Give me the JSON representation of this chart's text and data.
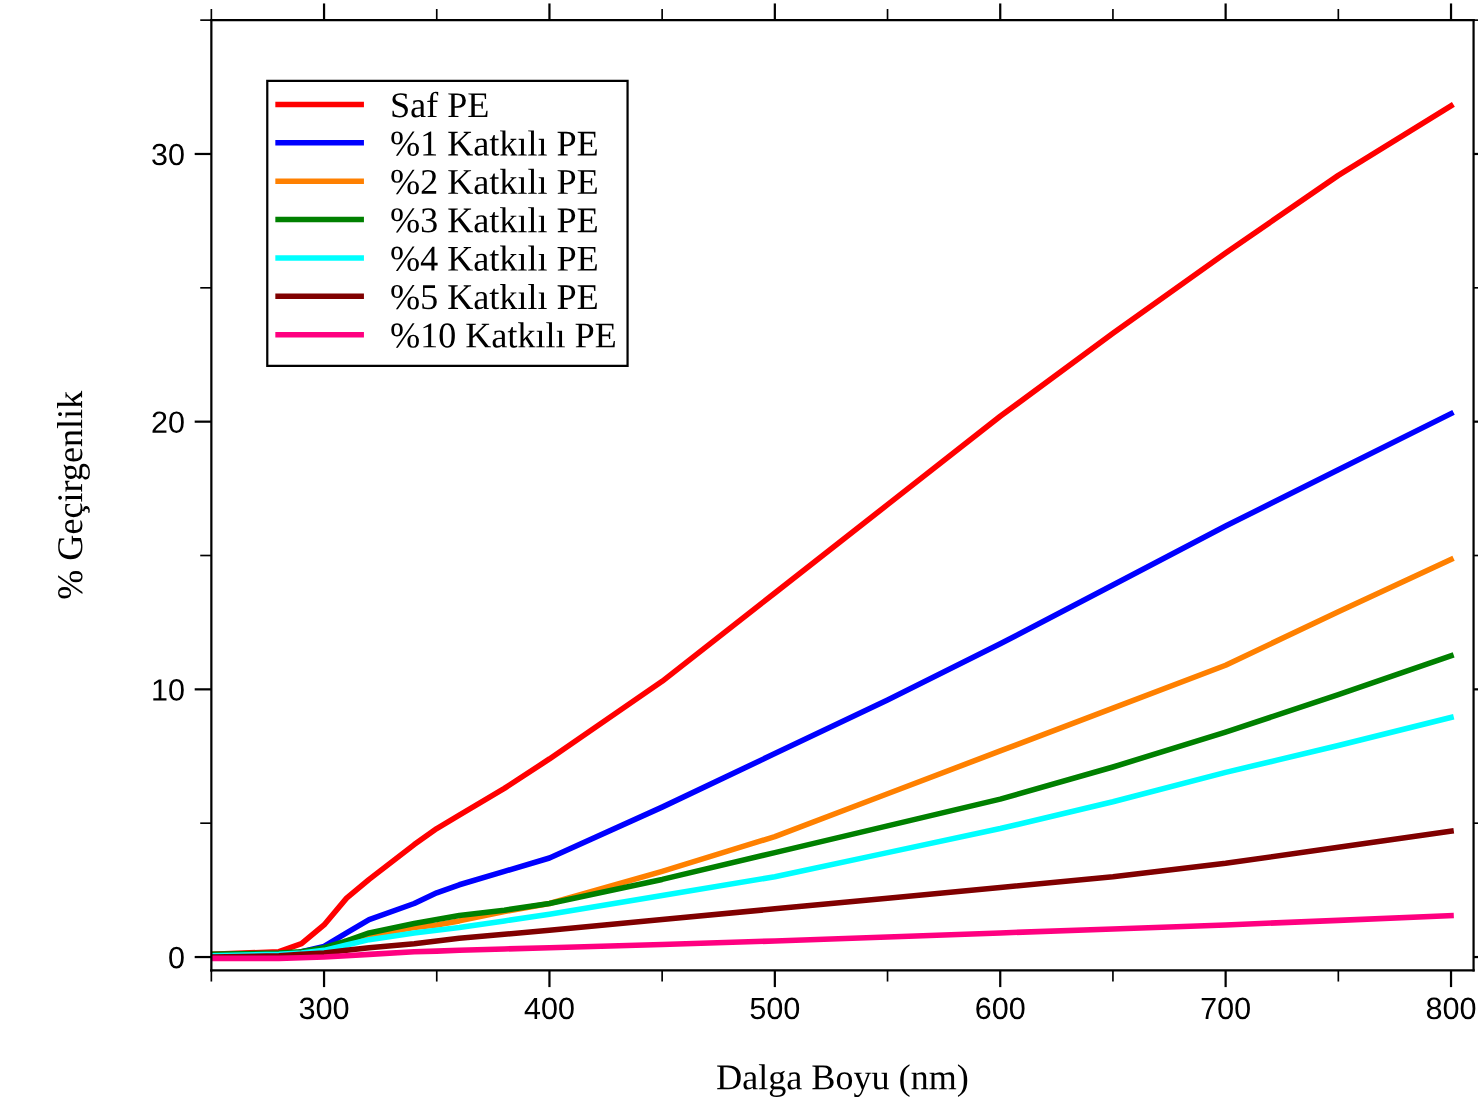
{
  "chart_data": {
    "type": "line",
    "xlabel": "Dalga Boyu (nm)",
    "ylabel": "% Geçirgenlik",
    "x": [
      250,
      280,
      290,
      300,
      310,
      320,
      340,
      350,
      360,
      380,
      400,
      450,
      500,
      550,
      600,
      650,
      700,
      750,
      800
    ],
    "series": [
      {
        "name": "Saf PE",
        "color": "#ff0000",
        "values": [
          0.1,
          0.2,
          0.5,
          1.2,
          2.2,
          2.9,
          4.2,
          4.8,
          5.3,
          6.3,
          7.4,
          10.3,
          13.6,
          16.9,
          20.2,
          23.3,
          26.3,
          29.2,
          31.8
        ]
      },
      {
        "name": "%1 Katkılı PE",
        "color": "#0000ff",
        "values": [
          null,
          null,
          0.2,
          0.4,
          0.9,
          1.4,
          2.0,
          2.4,
          2.7,
          3.2,
          3.7,
          5.6,
          7.6,
          9.6,
          11.7,
          13.9,
          16.1,
          18.2,
          20.3
        ]
      },
      {
        "name": "%2 Katkılı PE",
        "color": "#ff8000",
        "values": [
          null,
          null,
          null,
          null,
          0.6,
          0.8,
          1.1,
          1.2,
          1.35,
          1.7,
          2.0,
          3.2,
          4.5,
          6.1,
          7.7,
          9.3,
          10.9,
          12.9,
          14.85
        ]
      },
      {
        "name": "%3 Katkılı PE",
        "color": "#008000",
        "values": [
          0.1,
          0.15,
          0.2,
          0.35,
          0.6,
          0.9,
          1.25,
          1.4,
          1.55,
          1.75,
          2.0,
          2.9,
          3.9,
          4.9,
          5.9,
          7.1,
          8.4,
          9.8,
          11.25
        ]
      },
      {
        "name": "%4 Katkılı PE",
        "color": "#00ffff",
        "values": [
          0.05,
          0.1,
          0.15,
          0.25,
          0.45,
          0.65,
          0.9,
          1.0,
          1.1,
          1.35,
          1.6,
          2.3,
          3.0,
          3.9,
          4.8,
          5.8,
          6.9,
          7.9,
          8.95
        ]
      },
      {
        "name": "%5 Katkılı PE",
        "color": "#800000",
        "values": [
          0.0,
          0.05,
          0.1,
          0.15,
          0.25,
          0.35,
          0.5,
          0.6,
          0.7,
          0.85,
          1.0,
          1.4,
          1.8,
          2.2,
          2.6,
          3.0,
          3.5,
          4.1,
          4.7
        ]
      },
      {
        "name": "%10 Katkılı PE",
        "color": "#ff0080",
        "values": [
          -0.05,
          -0.05,
          -0.03,
          0.0,
          0.05,
          0.1,
          0.2,
          0.22,
          0.25,
          0.3,
          0.35,
          0.47,
          0.6,
          0.75,
          0.9,
          1.05,
          1.2,
          1.37,
          1.55
        ]
      }
    ],
    "xlim": [
      250,
      810
    ],
    "ylim": [
      -0.5,
      35
    ],
    "xticks": [
      300,
      400,
      500,
      600,
      700,
      800
    ],
    "yticks": [
      0,
      10,
      20,
      30
    ],
    "legend": "top left",
    "grid": false,
    "line_style": "solid",
    "marker": "none"
  }
}
